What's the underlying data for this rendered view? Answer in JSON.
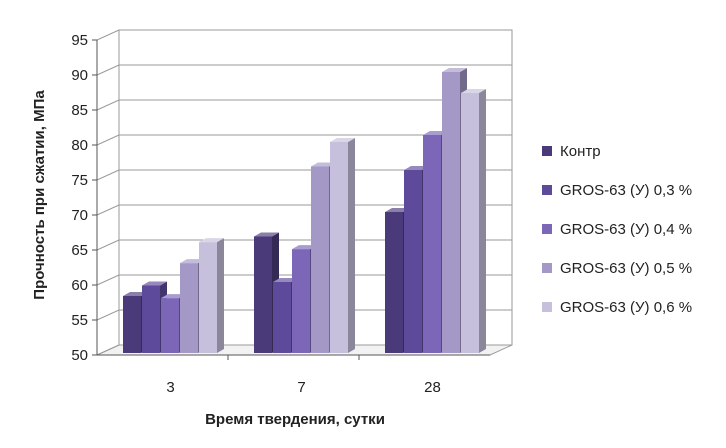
{
  "chart_data": {
    "type": "bar",
    "title": "",
    "xlabel": "Время твердения, сутки",
    "ylabel": "Прочность при сжатии, МПа",
    "categories": [
      "3",
      "7",
      "28"
    ],
    "ylim": [
      50,
      95
    ],
    "yticks": [
      50,
      55,
      60,
      65,
      70,
      75,
      80,
      85,
      90,
      95
    ],
    "grid": true,
    "legend_position": "right",
    "series": [
      {
        "name": "Контр",
        "values": [
          59,
          67.5,
          71
        ],
        "color": "#4b3a7a"
      },
      {
        "name": "GROS-63 (У) 0,3 %",
        "values": [
          60.5,
          61,
          77
        ],
        "color": "#5e4a9a"
      },
      {
        "name": "GROS-63 (У) 0,4 %",
        "values": [
          58.7,
          65.7,
          82
        ],
        "color": "#7b66b8"
      },
      {
        "name": "GROS-63 (У) 0,5 %",
        "values": [
          63.7,
          77.5,
          91
        ],
        "color": "#a498c6"
      },
      {
        "name": "GROS-63 (У) 0,6 %",
        "values": [
          66.7,
          81,
          88
        ],
        "color": "#c6c0dc"
      }
    ]
  }
}
